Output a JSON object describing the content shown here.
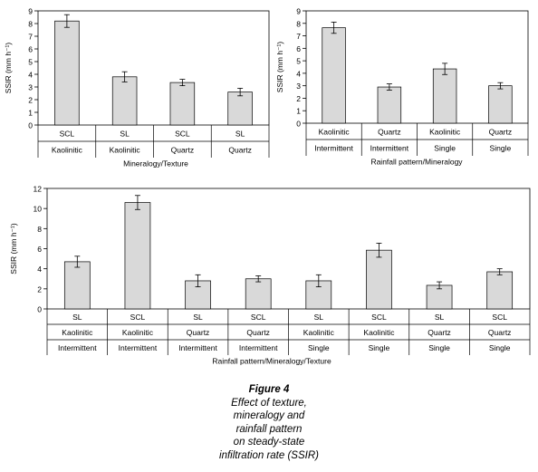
{
  "chart_data": [
    {
      "type": "bar",
      "ylabel": "SSIR (mm h⁻¹)",
      "xlabel": "Mineralogy/Texture",
      "ylim": [
        0,
        9
      ],
      "yticks": [
        0,
        1,
        2,
        3,
        4,
        5,
        6,
        7,
        8,
        9
      ],
      "category_rows": [
        [
          "SCL",
          "SL",
          "SCL",
          "SL"
        ],
        [
          "Kaolinitic",
          "Kaolinitic",
          "Quartz",
          "Quartz"
        ]
      ],
      "values": [
        8.2,
        3.8,
        3.35,
        2.6
      ],
      "errors": [
        0.5,
        0.4,
        0.25,
        0.3
      ],
      "bar_color": "#d9d9d9"
    },
    {
      "type": "bar",
      "ylabel": "SSIR (mm h⁻¹)",
      "xlabel": "Rainfall pattern/Mineralogy",
      "ylim": [
        0,
        9
      ],
      "yticks": [
        0,
        1,
        2,
        3,
        4,
        5,
        6,
        7,
        8,
        9
      ],
      "category_rows": [
        [
          "Kaolinitic",
          "Quartz",
          "Kaolinitic",
          "Quartz"
        ],
        [
          "Intermittent",
          "Intermittent",
          "Single",
          "Single"
        ]
      ],
      "values": [
        7.65,
        2.9,
        4.35,
        3.0
      ],
      "errors": [
        0.45,
        0.25,
        0.45,
        0.25
      ],
      "bar_color": "#d9d9d9"
    },
    {
      "type": "bar",
      "ylabel": "SSIR (mm h⁻¹)",
      "xlabel": "Rainfall pattern/Mineralogy/Texture",
      "ylim": [
        0,
        12
      ],
      "yticks": [
        0,
        2,
        4,
        6,
        8,
        10,
        12
      ],
      "category_rows": [
        [
          "SL",
          "SCL",
          "SL",
          "SCL",
          "SL",
          "SCL",
          "SL",
          "SCL"
        ],
        [
          "Kaolinitic",
          "Kaolinitic",
          "Quartz",
          "Quartz",
          "Kaolinitic",
          "Kaolinitic",
          "Quartz",
          "Quartz"
        ],
        [
          "Intermittent",
          "Intermittent",
          "Intermittent",
          "Intermittent",
          "Single",
          "Single",
          "Single",
          "Single"
        ]
      ],
      "values": [
        4.7,
        10.6,
        2.8,
        3.0,
        2.8,
        5.85,
        2.35,
        3.7
      ],
      "errors": [
        0.55,
        0.7,
        0.6,
        0.3,
        0.6,
        0.7,
        0.35,
        0.3
      ],
      "bar_color": "#d9d9d9"
    }
  ],
  "caption": {
    "figure": "Figure 4",
    "lines": [
      "Effect of texture,",
      "mineralogy and",
      "rainfall pattern",
      "on steady-state",
      "infiltration rate (SSIR)"
    ]
  }
}
